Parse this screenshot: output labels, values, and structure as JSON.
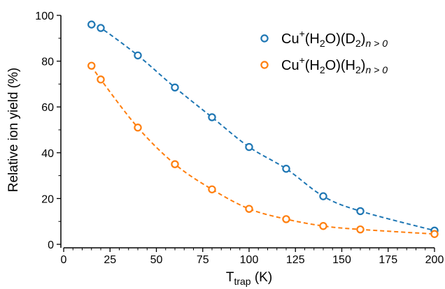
{
  "chart_data": {
    "type": "line",
    "title": "",
    "xlabel": "T",
    "xlabel_sub": "trap",
    "xlabel_unit": " (K)",
    "ylabel": "Relative ion yield (%)",
    "xlim": [
      0,
      200
    ],
    "ylim": [
      0,
      100
    ],
    "xticks": [
      0,
      25,
      50,
      75,
      100,
      125,
      150,
      175,
      200
    ],
    "yticks": [
      0,
      20,
      40,
      60,
      80,
      100
    ],
    "grid": false,
    "legend_position": "top-right",
    "series": [
      {
        "name_parts": [
          "Cu",
          "+",
          "(H",
          "2",
          "O)(D",
          "2",
          ")",
          "n > 0"
        ],
        "color": "#1f77b4",
        "x": [
          15,
          20,
          40,
          60,
          80,
          100,
          120,
          140,
          160,
          200
        ],
        "y": [
          96,
          94.5,
          82.5,
          68.5,
          55.5,
          42.5,
          33,
          21,
          14.5,
          6
        ]
      },
      {
        "name_parts": [
          "Cu",
          "+",
          "(H",
          "2",
          "O)(H",
          "2",
          ")",
          "n > 0"
        ],
        "color": "#ff7f0e",
        "x": [
          15,
          20,
          40,
          60,
          80,
          100,
          120,
          140,
          160,
          200
        ],
        "y": [
          78,
          72,
          51,
          35,
          24,
          15.5,
          11,
          8,
          6.5,
          4.5
        ]
      }
    ]
  }
}
